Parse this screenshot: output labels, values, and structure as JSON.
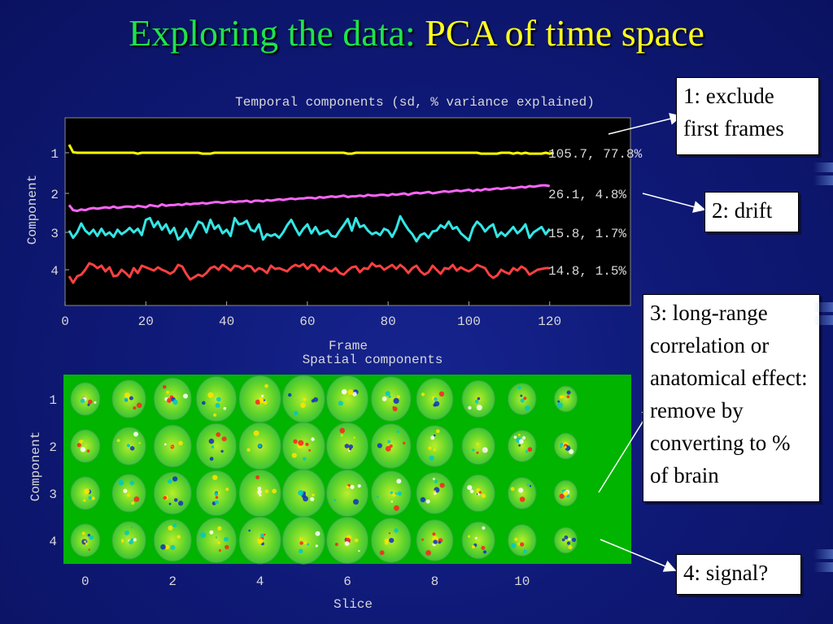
{
  "slide": {
    "title_part1": "Exploring the data: ",
    "title_part2": "PCA of time ",
    "title_symbol": "",
    "title_part3": " space"
  },
  "callouts": [
    {
      "id": "c1",
      "text": "1: exclude first frames"
    },
    {
      "id": "c2",
      "text": "2: drift"
    },
    {
      "id": "c3",
      "text": "3: long-range correlation or anatomical effect: remove by converting to % of brain"
    },
    {
      "id": "c4",
      "text": "4: signal?"
    }
  ],
  "colors": {
    "background": "#0f1a78",
    "title_green": "#1ee34a",
    "title_yellow": "#ffff1e",
    "series": [
      "#ffff00",
      "#ff66ff",
      "#33e6e6",
      "#ff4040"
    ],
    "spatial_bg": "#00b400"
  },
  "chart_data": [
    {
      "type": "line",
      "title": "Temporal components (sd, % variance explained)",
      "xlabel": "Frame",
      "ylabel": "Component",
      "xlim": [
        0,
        140
      ],
      "xticks": [
        "0",
        "20",
        "40",
        "60",
        "80",
        "100",
        "120"
      ],
      "yticks": [
        "1",
        "2",
        "3",
        "4"
      ],
      "frames": 120,
      "series": [
        {
          "name": "1",
          "annotation": "105.7, 77.8%",
          "values": [
            1.8,
            0.1,
            0,
            0,
            0,
            0,
            0,
            0,
            0,
            0,
            0,
            0,
            0,
            0,
            0,
            0,
            0,
            -0.2,
            0,
            0,
            0,
            0,
            0,
            0,
            0,
            0,
            0,
            0,
            0,
            0,
            0,
            0,
            0,
            -0.2,
            -0.2,
            -0.2,
            0,
            0,
            0,
            0,
            0,
            0,
            0,
            0,
            0,
            0,
            0,
            0,
            0,
            0,
            0,
            0,
            0,
            0,
            0,
            0,
            0,
            0,
            0,
            0,
            0,
            0,
            0,
            0,
            0,
            0,
            0,
            0,
            0,
            -0.2,
            -0.2,
            0,
            0,
            0,
            0,
            0,
            0,
            0,
            0,
            0,
            0,
            0,
            0,
            0,
            0,
            0,
            0,
            0,
            0,
            0,
            0,
            0,
            0,
            0,
            0,
            0,
            0,
            0,
            0,
            0,
            0,
            0,
            -0.2,
            -0.2,
            -0.2,
            -0.2,
            -0.2,
            0,
            0,
            0,
            -0.2,
            0,
            -0.2,
            0,
            -0.2,
            -0.2,
            -0.2,
            -0.2,
            0,
            -0.2,
            0
          ]
        },
        {
          "name": "2",
          "annotation": "26.1, 4.8%",
          "values": [
            -1.6,
            -2.3,
            -2.4,
            -2.2,
            -2.3,
            -2.1,
            -2.0,
            -2.1,
            -2.0,
            -1.9,
            -2.0,
            -1.8,
            -2.0,
            -1.9,
            -1.8,
            -1.8,
            -1.9,
            -1.7,
            -1.8,
            -1.9,
            -1.6,
            -1.7,
            -1.8,
            -1.5,
            -1.7,
            -1.6,
            -1.6,
            -1.5,
            -1.6,
            -1.4,
            -1.5,
            -1.4,
            -1.4,
            -1.3,
            -1.4,
            -1.3,
            -1.2,
            -1.2,
            -1.3,
            -1.2,
            -1.1,
            -1.2,
            -1.1,
            -1.1,
            -1.0,
            -1.2,
            -1.0,
            -1.0,
            -1.1,
            -0.9,
            -1.0,
            -0.9,
            -0.8,
            -0.9,
            -0.8,
            -0.7,
            -0.8,
            -0.7,
            -0.7,
            -0.6,
            -0.6,
            -0.7,
            -0.5,
            -0.6,
            -0.5,
            -0.4,
            -0.5,
            -0.4,
            -0.3,
            -0.5,
            -0.4,
            -0.4,
            -0.3,
            -0.4,
            -0.2,
            -0.3,
            -0.3,
            -0.2,
            -0.2,
            -0.3,
            -0.1,
            -0.2,
            -0.1,
            0.0,
            -0.2,
            0.0,
            0.1,
            0.0,
            0.1,
            0.2,
            0.0,
            0.1,
            0.2,
            0.3,
            0.2,
            0.3,
            0.4,
            0.3,
            0.4,
            0.5,
            0.3,
            0.5,
            0.4,
            0.6,
            0.5,
            0.6,
            0.7,
            0.6,
            0.7,
            0.8,
            0.7,
            0.8,
            0.9,
            0.8,
            1.0,
            0.9,
            1.0,
            1.1,
            1.1,
            1.0
          ]
        },
        {
          "name": "3",
          "annotation": "15.8, 1.7%",
          "values": [
            0.2,
            -0.6,
            0.0,
            1.0,
            0.2,
            -0.2,
            0.3,
            -0.4,
            0.4,
            -0.3,
            0.0,
            -0.5,
            0.3,
            -0.2,
            0.1,
            0.5,
            0.0,
            0.4,
            -0.3,
            1.4,
            1.6,
            0.6,
            1.2,
            0.3,
            0.9,
            -0.1,
            0.5,
            -0.8,
            -0.4,
            0.4,
            -0.6,
            0.3,
            1.2,
            1.0,
            0.0,
            1.4,
            0.4,
            0.8,
            -0.1,
            0.3,
            -0.4,
            1.6,
            0.9,
            1.0,
            1.3,
            0.3,
            0.1,
            0.9,
            -0.8,
            -0.2,
            -0.4,
            -0.2,
            -0.6,
            0.0,
            0.8,
            1.4,
            0.5,
            -0.3,
            0.4,
            0.9,
            -0.1,
            0.6,
            -0.2,
            0.0,
            0.2,
            -0.4,
            -0.5,
            0.2,
            0.8,
            1.5,
            0.2,
            1.6,
            0.6,
            0.8,
            0.2,
            -0.2,
            0.0,
            -0.3,
            0.4,
            0.2,
            -0.5,
            0.4,
            1.8,
            1.0,
            0.3,
            -0.2,
            -1.0,
            -0.3,
            -0.1,
            -0.6,
            0.1,
            0.2,
            0.8,
            0.5,
            1.2,
            0.4,
            0.6,
            -0.1,
            -0.5,
            -0.9,
            0.5,
            1.2,
            0.8,
            0.1,
            0.6,
            0.9,
            -0.5,
            0.0,
            -0.4,
            0.1,
            0.6,
            -0.1,
            0.3,
            0.9,
            -0.6,
            0.0,
            0.3,
            0.6,
            -0.2,
            0.4
          ]
        },
        {
          "name": "4",
          "annotation": "14.8, 1.5%",
          "values": [
            -0.8,
            -1.6,
            -0.8,
            -0.6,
            0.0,
            0.8,
            0.6,
            0.2,
            0.5,
            -0.2,
            0.3,
            -0.8,
            -0.7,
            0.0,
            -0.4,
            -0.9,
            0.2,
            -0.4,
            0.5,
            0.3,
            0.1,
            -0.1,
            0.3,
            0.0,
            -0.2,
            -0.5,
            -0.2,
            0.6,
            0.4,
            -0.5,
            -1.2,
            -0.9,
            -0.6,
            -0.8,
            -0.4,
            0.2,
            0.4,
            0.0,
            0.6,
            0.3,
            -0.1,
            0.5,
            0.4,
            0.1,
            0.5,
            0.4,
            -0.2,
            0.2,
            0.0,
            -0.4,
            0.5,
            0.1,
            0.2,
            0.0,
            -0.2,
            0.3,
            0.6,
            0.4,
            0.7,
            0.1,
            0.6,
            0.5,
            -0.2,
            0.4,
            0.0,
            -0.2,
            0.2,
            -0.4,
            -0.6,
            -0.1,
            0.3,
            0.4,
            -0.3,
            0.2,
            0.1,
            0.8,
            0.4,
            0.5,
            0.0,
            0.3,
            0.6,
            0.1,
            0.6,
            0.2,
            -0.4,
            0.2,
            0.5,
            -0.2,
            -0.6,
            -0.3,
            0.5,
            0.0,
            -0.5,
            0.2,
            0.1,
            0.6,
            -0.1,
            0.3,
            0.0,
            -0.2,
            0.1,
            0.6,
            0.4,
            0.2,
            -0.6,
            -1.0,
            -0.7,
            0.0,
            -0.3,
            -0.5,
            0.2,
            -0.1,
            0.4,
            0.1,
            -0.6,
            -0.3,
            0.0,
            0.1,
            0.2,
            0.2
          ]
        }
      ]
    },
    {
      "type": "heatmap",
      "title": "Spatial components",
      "xlabel": "Slice",
      "ylabel": "Component",
      "xlim": [
        -0.5,
        12.5
      ],
      "xticks": [
        "0",
        "2",
        "4",
        "6",
        "8",
        "10"
      ],
      "yticks": [
        "1",
        "2",
        "3",
        "4"
      ],
      "slices": 12,
      "components": 4,
      "grid": false
    }
  ]
}
